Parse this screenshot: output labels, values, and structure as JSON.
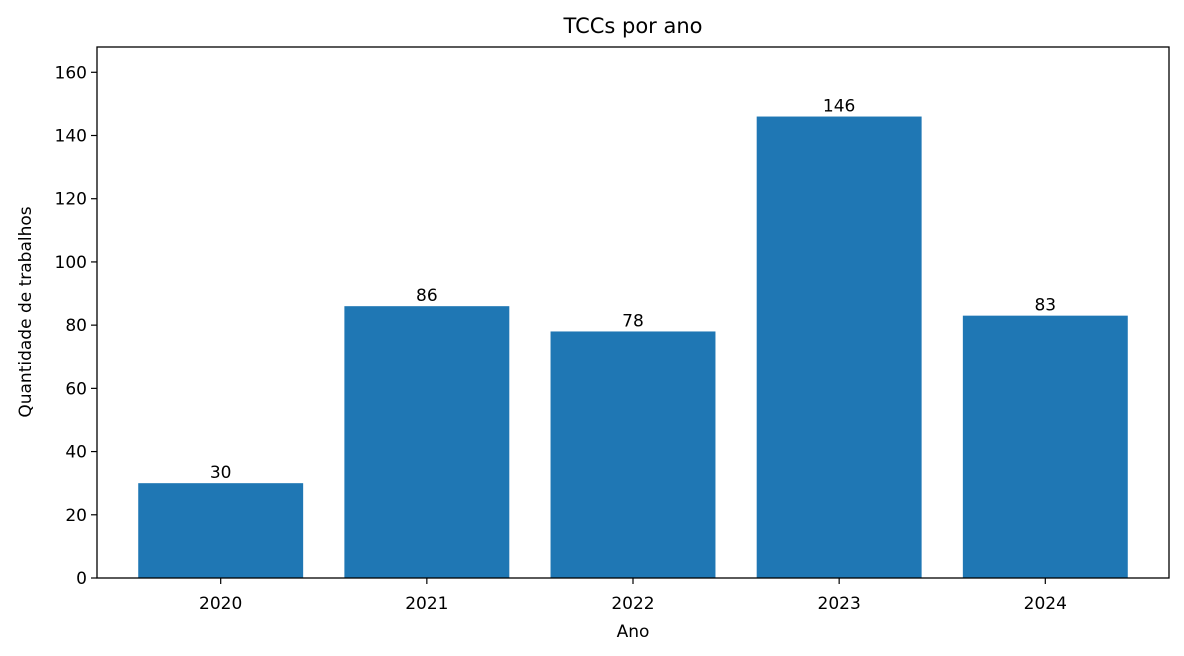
{
  "chart_data": {
    "type": "bar",
    "title": "TCCs por ano",
    "xlabel": "Ano",
    "ylabel": "Quantidade de trabalhos",
    "categories": [
      "2020",
      "2021",
      "2022",
      "2023",
      "2024"
    ],
    "values": [
      30,
      86,
      78,
      146,
      83
    ],
    "ylim": [
      0,
      168
    ],
    "yticks": [
      0,
      20,
      40,
      60,
      80,
      100,
      120,
      140,
      160
    ],
    "bar_color": "#1f77b4",
    "grid": false,
    "legend": "none"
  }
}
